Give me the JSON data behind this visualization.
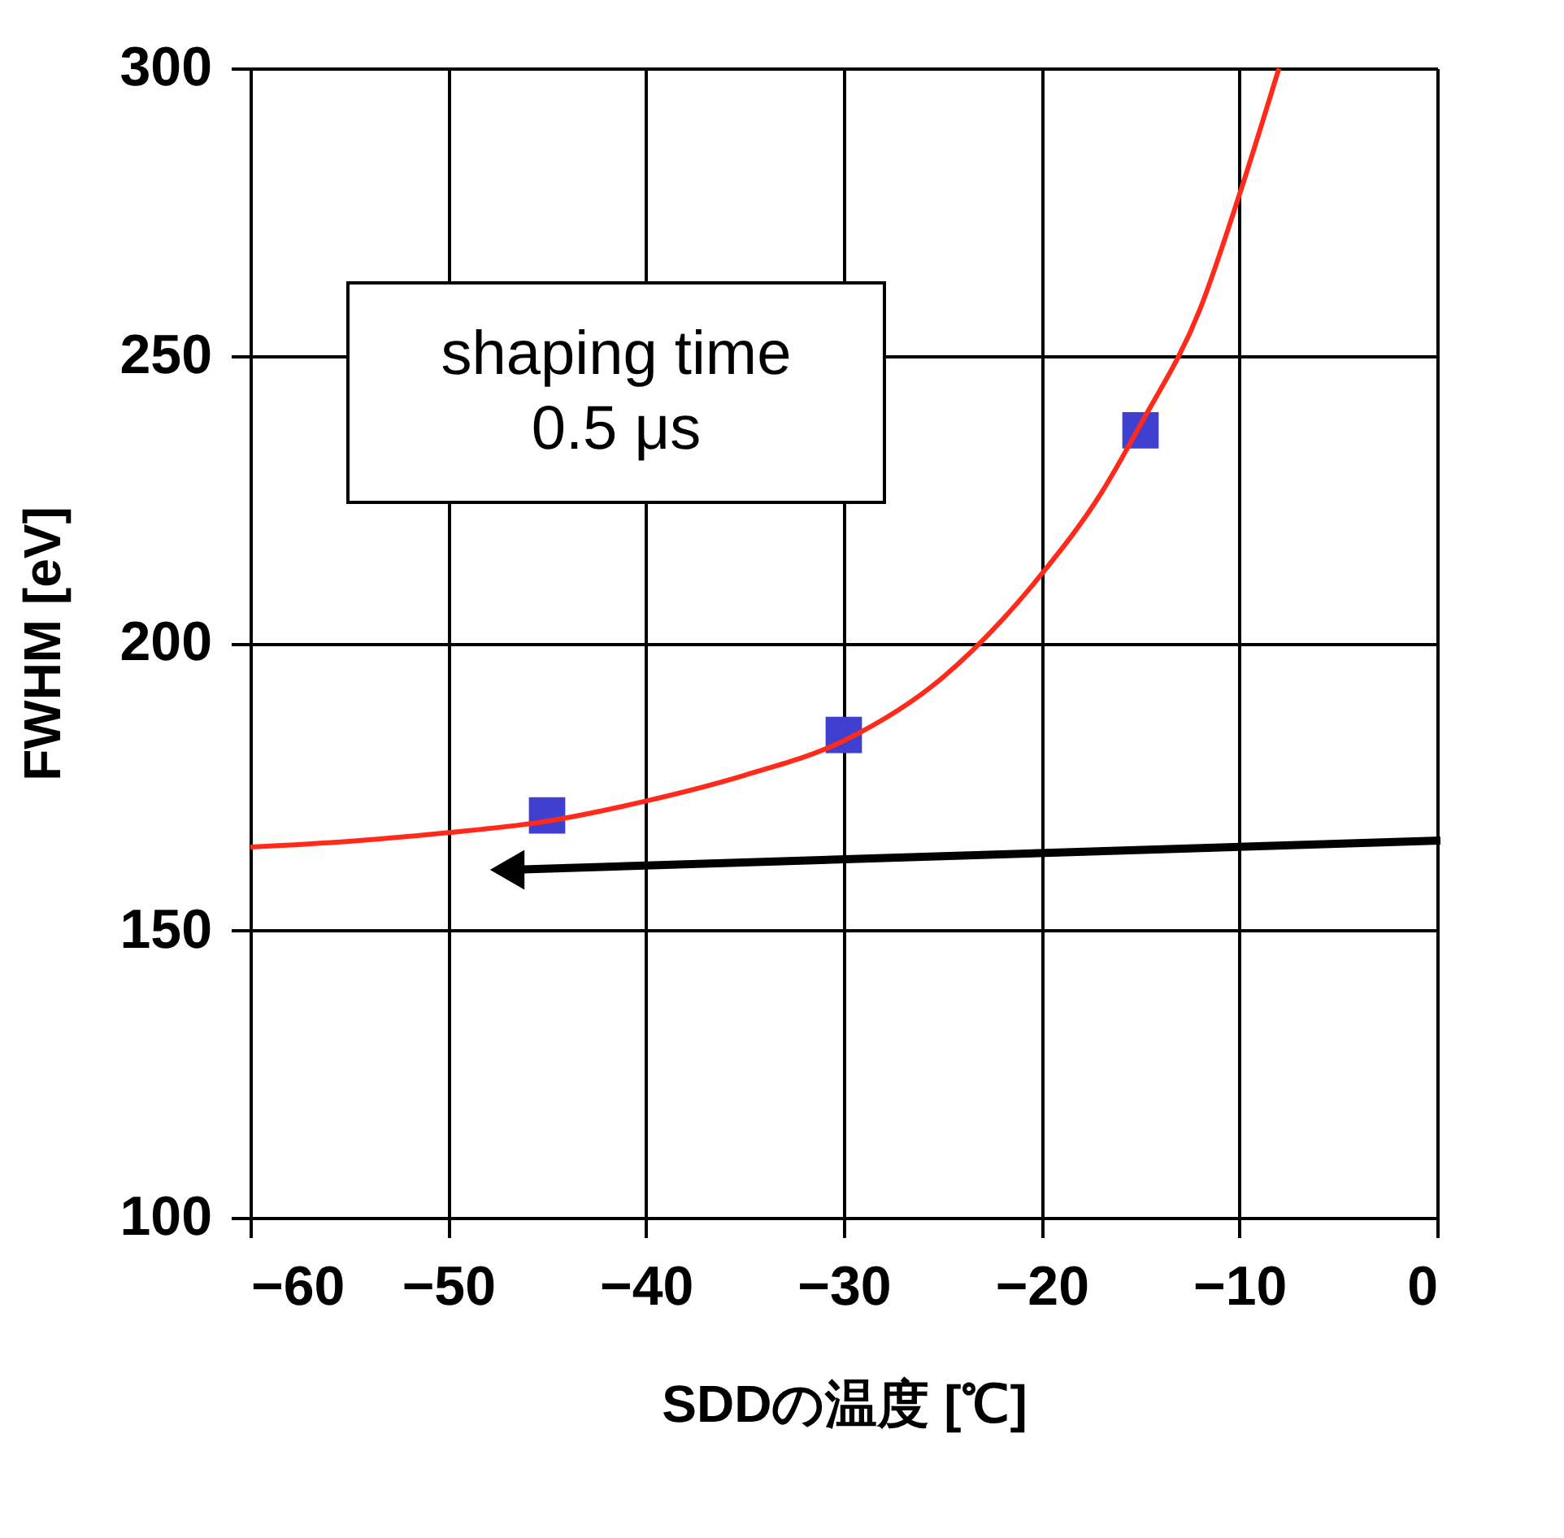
{
  "chart_data": {
    "type": "scatter",
    "xlabel": "SDDの温度 [℃]",
    "ylabel": "FWHM [eV]",
    "xlim": [
      -60,
      0
    ],
    "xticks": [
      -60,
      -50,
      -40,
      -30,
      -20,
      -10,
      0
    ],
    "ylim": [
      100,
      300
    ],
    "yticks": [
      100,
      150,
      200,
      250,
      300
    ],
    "grid": true,
    "annotations": [
      "shaping time\n0.5 μs"
    ],
    "series": [
      {
        "marker": "square",
        "color": "#3f3fd0",
        "x": [
          -45,
          -30,
          -15
        ],
        "values": [
          170,
          184,
          237
        ]
      },
      {
        "type": "line",
        "marker": "none",
        "line_style": "solid",
        "color": "#ff2a1a",
        "x": [
          -60,
          -55,
          -50,
          -45,
          -40,
          -35,
          -30,
          -25,
          -20,
          -17,
          -15,
          -12,
          -10,
          -8
        ],
        "values": [
          164.5,
          165.5,
          167,
          169,
          172.5,
          177,
          183,
          194,
          212,
          226,
          238,
          258,
          278,
          300
        ]
      }
    ]
  }
}
